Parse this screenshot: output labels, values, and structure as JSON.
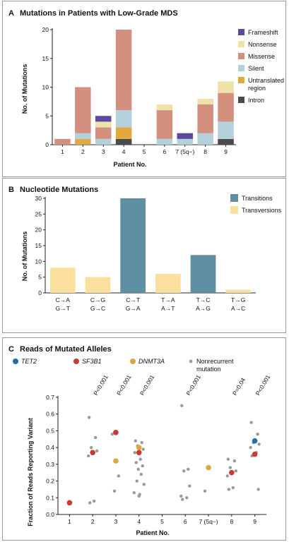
{
  "chart_data": [
    {
      "panel": "A",
      "title": "Mutations in Patients with Low-Grade MDS",
      "type": "bar",
      "stacked": true,
      "xlabel": "Patient No.",
      "ylabel": "No. of Mutations",
      "ylim": [
        0,
        20
      ],
      "yticks": [
        "0",
        "5",
        "10",
        "15",
        "20"
      ],
      "categories": [
        "1",
        "2",
        "3",
        "4",
        "5",
        "6",
        "7 (5q−)",
        "8",
        "9"
      ],
      "series": [
        {
          "name": "Intron",
          "color": "#4a4a4a",
          "values": [
            0,
            0,
            0,
            1,
            0,
            0,
            0,
            0,
            1
          ]
        },
        {
          "name": "Untranslated region",
          "color": "#e0aa3e",
          "values": [
            0,
            1,
            0,
            2,
            0,
            0,
            0,
            0,
            0
          ]
        },
        {
          "name": "Silent",
          "color": "#b5d0dd",
          "values": [
            0,
            1,
            1,
            3,
            0,
            1,
            1,
            2,
            3
          ]
        },
        {
          "name": "Missense",
          "color": "#d4907e",
          "values": [
            1,
            8,
            2,
            14,
            0,
            5,
            0,
            5,
            5
          ]
        },
        {
          "name": "Nonsense",
          "color": "#efe2a8",
          "values": [
            0,
            0,
            1,
            0,
            0,
            1,
            0,
            1,
            2
          ]
        },
        {
          "name": "Frameshift",
          "color": "#5a4a9e",
          "values": [
            0,
            0,
            1,
            0,
            0,
            0,
            1,
            0,
            0
          ]
        }
      ],
      "legend_position": "right",
      "legend_order": [
        "Frameshift",
        "Nonsense",
        "Missense",
        "Silent",
        "Untranslated region",
        "Intron"
      ]
    },
    {
      "panel": "B",
      "title": "Nucleotide Mutations",
      "type": "bar",
      "ylabel": "No. of Mutations",
      "xlabel": "",
      "ylim": [
        0,
        30
      ],
      "yticks": [
        "0",
        "5",
        "10",
        "15",
        "20",
        "25",
        "30"
      ],
      "categories": [
        {
          "top": "C→A",
          "bottom": "G→T"
        },
        {
          "top": "C→G",
          "bottom": "G→C"
        },
        {
          "top": "C→T",
          "bottom": "G→A"
        },
        {
          "top": "T→A",
          "bottom": "A→T"
        },
        {
          "top": "T→C",
          "bottom": "A→G"
        },
        {
          "top": "T→G",
          "bottom": "A→C"
        }
      ],
      "values": [
        8,
        5,
        30,
        6,
        12,
        1
      ],
      "bar_series": [
        "Transversions",
        "Transversions",
        "Transitions",
        "Transversions",
        "Transitions",
        "Transversions"
      ],
      "series": [
        {
          "name": "Transitions",
          "color": "#5e8fa3"
        },
        {
          "name": "Transversions",
          "color": "#fbdf9c"
        }
      ],
      "legend_position": "top-right"
    },
    {
      "panel": "C",
      "title": "Reads of Mutated Alleles",
      "type": "scatter",
      "xlabel": "Patient No.",
      "ylabel": "Fraction of Reads Reporting Variant",
      "ylim": [
        0,
        0.7
      ],
      "yticks": [
        "0.0",
        "0.1",
        "0.2",
        "0.3",
        "0.4",
        "0.5",
        "0.6",
        "0.7"
      ],
      "categories": [
        "1",
        "2",
        "3",
        "4",
        "5",
        "6",
        "7 (5q−)",
        "8",
        "9"
      ],
      "series": [
        {
          "name": "TET2",
          "color": "#1f6fae",
          "points": [
            [
              9,
              0.44
            ]
          ]
        },
        {
          "name": "SF3B1",
          "color": "#c83a34",
          "points": [
            [
              1,
              0.07
            ],
            [
              2,
              0.37
            ],
            [
              3,
              0.49
            ],
            [
              4,
              0.37
            ],
            [
              8,
              0.25
            ],
            [
              9,
              0.36
            ]
          ]
        },
        {
          "name": "DNMT3A",
          "color": "#dca83a",
          "points": [
            [
              3,
              0.32
            ],
            [
              4,
              0.4
            ],
            [
              7,
              0.28
            ]
          ]
        },
        {
          "name": "Nonrecurrent mutation",
          "color": "#9a9a9a",
          "points": [
            [
              2,
              0.58
            ],
            [
              2,
              0.46
            ],
            [
              2,
              0.4
            ],
            [
              2,
              0.38
            ],
            [
              2,
              0.35
            ],
            [
              2,
              0.08
            ],
            [
              2,
              0.07
            ],
            [
              3,
              0.48
            ],
            [
              3,
              0.23
            ],
            [
              3,
              0.14
            ],
            [
              4,
              0.44
            ],
            [
              4,
              0.43
            ],
            [
              4,
              0.41
            ],
            [
              4,
              0.39
            ],
            [
              4,
              0.37
            ],
            [
              4,
              0.33
            ],
            [
              4,
              0.31
            ],
            [
              4,
              0.29
            ],
            [
              4,
              0.27
            ],
            [
              4,
              0.24
            ],
            [
              4,
              0.2
            ],
            [
              4,
              0.18
            ],
            [
              4,
              0.13
            ],
            [
              4,
              0.12
            ],
            [
              4,
              0.11
            ],
            [
              6,
              0.65
            ],
            [
              6,
              0.27
            ],
            [
              6,
              0.26
            ],
            [
              6,
              0.17
            ],
            [
              6,
              0.11
            ],
            [
              6,
              0.1
            ],
            [
              6,
              0.09
            ],
            [
              7,
              0.14
            ],
            [
              8,
              0.33
            ],
            [
              8,
              0.32
            ],
            [
              8,
              0.28
            ],
            [
              8,
              0.26
            ],
            [
              8,
              0.23
            ],
            [
              8,
              0.16
            ],
            [
              8,
              0.15
            ],
            [
              9,
              0.55
            ],
            [
              9,
              0.48
            ],
            [
              9,
              0.43
            ],
            [
              9,
              0.42
            ],
            [
              9,
              0.4
            ],
            [
              9,
              0.37
            ],
            [
              9,
              0.35
            ],
            [
              9,
              0.15
            ]
          ]
        }
      ],
      "annotations": [
        {
          "x": 2,
          "text": "P<0.001"
        },
        {
          "x": 3,
          "text": "P<0.001"
        },
        {
          "x": 4,
          "text": "P<0.001"
        },
        {
          "x": 6,
          "text": "P<0.001"
        },
        {
          "x": 8,
          "text": "P=0.04"
        },
        {
          "x": 9,
          "text": "P<0.001"
        }
      ],
      "legend_position": "top"
    }
  ]
}
